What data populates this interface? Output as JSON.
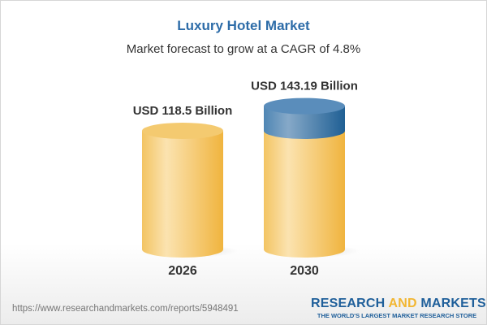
{
  "chart_data": {
    "type": "bar",
    "style": "3d-cylinder",
    "title": "Luxury Hotel Market",
    "subtitle": "Market forecast to grow at a CAGR of 4.8%",
    "categories": [
      "2026",
      "2030"
    ],
    "values": [
      118.5,
      143.19
    ],
    "data_labels": [
      "USD 118.5 Billion",
      "USD 143.19 Billion"
    ],
    "unit": "USD Billion",
    "colors": {
      "base": "#f3c462",
      "growth": "#4f86b4",
      "title": "#2d6ca8"
    }
  },
  "footer": {
    "url": "https://www.researchandmarkets.com/reports/5948491",
    "logo_part1": "RESEARCH ",
    "logo_part2": "AND",
    "logo_part3": " MARKETS",
    "tagline": "THE WORLD'S LARGEST MARKET RESEARCH STORE"
  }
}
